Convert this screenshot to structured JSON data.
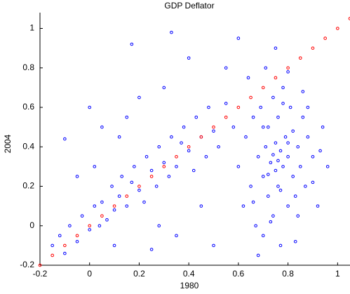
{
  "chart_data": {
    "type": "scatter",
    "title": "GDP Deflator",
    "xlabel": "1980",
    "ylabel": "2004",
    "xlim": [
      -0.2,
      1.05
    ],
    "ylim": [
      -0.2,
      1.08
    ],
    "xticks": [
      -0.2,
      0,
      0.2,
      0.4,
      0.6,
      0.8,
      1
    ],
    "yticks": [
      -0.2,
      0,
      0.2,
      0.4,
      0.6,
      0.8,
      1
    ],
    "series": [
      {
        "color": "#0000ff",
        "x": [
          -0.15,
          -0.12,
          -0.1,
          -0.08,
          -0.05,
          -0.03,
          0,
          0.02,
          0.04,
          0.05,
          0.07,
          0.09,
          0.1,
          0.12,
          0.13,
          0.15,
          0.17,
          0.18,
          0.2,
          0.22,
          0.23,
          0.25,
          0.27,
          0.28,
          0.3,
          0.32,
          0.33,
          0.35,
          0.37,
          0.38,
          0.4,
          0.42,
          0.43,
          0.45,
          0.47,
          0.48,
          0.5,
          0.52,
          0.55,
          0.58,
          0.6,
          0.62,
          0.63,
          0.65,
          0.66,
          0.67,
          0.68,
          0.69,
          0.7,
          0.7,
          0.71,
          0.72,
          0.72,
          0.73,
          0.74,
          0.74,
          0.75,
          0.75,
          0.76,
          0.76,
          0.77,
          0.77,
          0.78,
          0.78,
          0.79,
          0.8,
          0.8,
          0.81,
          0.82,
          0.82,
          0.83,
          0.84,
          0.85,
          0.86,
          0.87,
          0.88,
          0.9,
          0.92,
          0.94,
          0.96,
          0.64,
          0.68,
          0.71,
          0.73,
          0.75,
          0.78,
          0.8,
          0.83,
          0.86,
          0.9,
          0.66,
          0.7,
          0.74,
          0.77,
          0.8,
          0.84,
          0.88,
          0.93,
          0.72,
          0.76,
          -0.1,
          -0.05,
          0.0,
          0.05,
          0.1,
          0.15,
          0.2,
          0.25,
          0.3,
          0.17,
          0.33,
          0.4,
          0.45,
          0.5,
          0.55,
          0.6,
          0.35,
          0.28,
          0.12,
          0.02
        ],
        "y": [
          -0.1,
          -0.05,
          -0.14,
          0.0,
          -0.08,
          0.05,
          -0.02,
          0.1,
          0.0,
          0.12,
          0.03,
          0.2,
          0.08,
          0.15,
          0.25,
          0.1,
          0.22,
          0.3,
          0.18,
          0.12,
          0.35,
          0.28,
          0.2,
          0.4,
          0.32,
          0.25,
          0.45,
          0.3,
          0.42,
          0.5,
          0.38,
          0.28,
          0.55,
          0.45,
          0.35,
          0.6,
          0.48,
          0.4,
          0.62,
          0.5,
          0.3,
          0.1,
          0.45,
          0.2,
          0.55,
          0.0,
          0.35,
          0.6,
          0.25,
          -0.05,
          0.4,
          0.15,
          0.5,
          0.32,
          0.05,
          0.65,
          0.28,
          0.42,
          0.2,
          0.55,
          0.38,
          -0.1,
          0.3,
          0.7,
          0.45,
          0.1,
          0.35,
          0.6,
          0.25,
          0.48,
          0.15,
          0.4,
          0.3,
          0.55,
          0.2,
          0.45,
          0.35,
          0.1,
          0.5,
          0.3,
          0.75,
          -0.15,
          0.8,
          0.02,
          0.9,
          0.62,
          0.78,
          -0.08,
          0.68,
          0.22,
          0.12,
          0.5,
          0.36,
          0.18,
          0.42,
          0.05,
          0.6,
          0.38,
          0.26,
          0.33,
          0.44,
          0.25,
          0.6,
          0.5,
          -0.1,
          0.55,
          0.65,
          -0.12,
          0.7,
          0.92,
          0.98,
          0.85,
          0.1,
          -0.1,
          0.8,
          0.95,
          -0.05,
          0.0,
          0.45,
          0.3
        ]
      },
      {
        "color": "#ff0000",
        "x": [
          -0.2,
          -0.15,
          -0.1,
          -0.05,
          0,
          0.05,
          0.1,
          0.15,
          0.2,
          0.25,
          0.3,
          0.35,
          0.4,
          0.45,
          0.5,
          0.55,
          0.6,
          0.65,
          0.7,
          0.75,
          0.8,
          0.85,
          0.9,
          0.95,
          1,
          1.05
        ],
        "y": [
          -0.2,
          -0.15,
          -0.1,
          -0.05,
          0,
          0.05,
          0.1,
          0.15,
          0.2,
          0.25,
          0.3,
          0.35,
          0.4,
          0.45,
          0.5,
          0.55,
          0.6,
          0.65,
          0.7,
          0.75,
          0.8,
          0.85,
          0.9,
          0.95,
          1,
          1.05
        ]
      }
    ]
  }
}
